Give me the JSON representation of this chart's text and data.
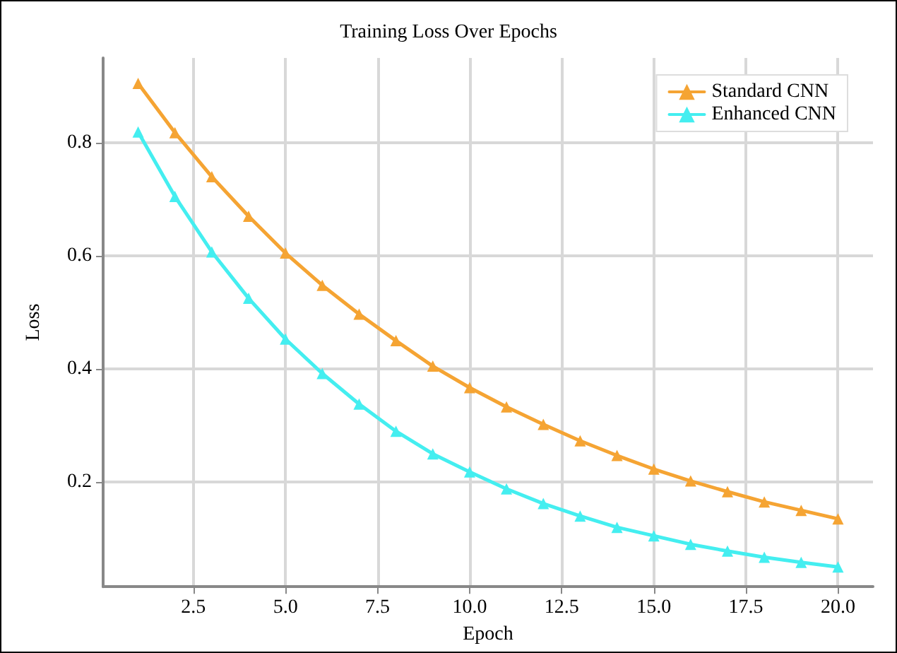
{
  "chart_data": {
    "type": "line",
    "title": "Training Loss Over Epochs",
    "xlabel": "Epoch",
    "ylabel": "Loss",
    "x": [
      1,
      2,
      3,
      4,
      5,
      6,
      7,
      8,
      9,
      10,
      11,
      12,
      13,
      14,
      15,
      16,
      17,
      18,
      19,
      20
    ],
    "series": [
      {
        "name": "Standard CNN",
        "color": "#f5a433",
        "values": [
          0.905,
          0.818,
          0.74,
          0.67,
          0.605,
          0.548,
          0.497,
          0.45,
          0.405,
          0.367,
          0.333,
          0.302,
          0.273,
          0.247,
          0.223,
          0.202,
          0.183,
          0.165,
          0.15,
          0.135
        ]
      },
      {
        "name": "Enhanced CNN",
        "color": "#44eef0",
        "values": [
          0.819,
          0.705,
          0.607,
          0.525,
          0.453,
          0.392,
          0.338,
          0.29,
          0.25,
          0.218,
          0.188,
          0.162,
          0.14,
          0.12,
          0.105,
          0.09,
          0.078,
          0.067,
          0.058,
          0.05
        ]
      }
    ],
    "xlim": [
      0.05,
      20.95
    ],
    "ylim": [
      0.015,
      0.95
    ],
    "xticks": [
      2.5,
      {
        "value": 5,
        "label": "5.0"
      },
      7.5,
      {
        "value": 10,
        "label": "10.0"
      },
      12.5,
      {
        "value": 15,
        "label": "15.0"
      },
      17.5,
      {
        "value": 20,
        "label": "20.0"
      }
    ],
    "yticks": [
      0.2,
      0.4,
      0.6,
      0.8
    ],
    "grid": true,
    "legend": "top right",
    "marker": "triangle",
    "line_style": "solid"
  }
}
